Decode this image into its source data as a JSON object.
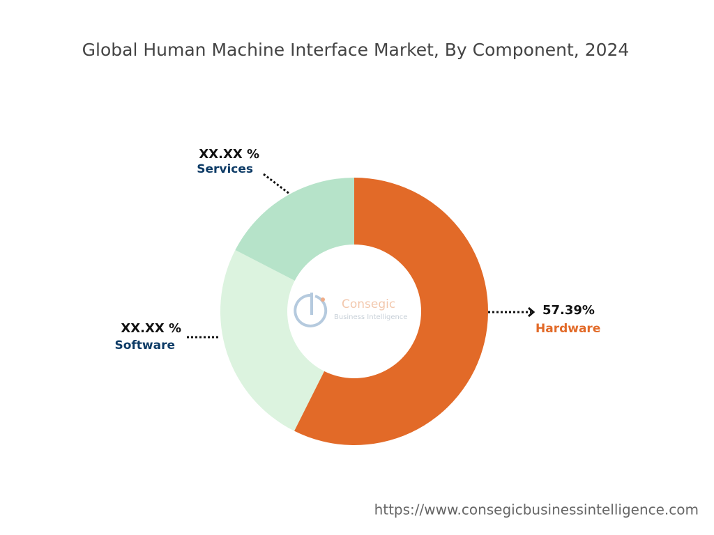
{
  "chart_data": {
    "type": "donut",
    "title": "Global Human Machine Interface Market, By Component, 2024",
    "categories": [
      "Hardware",
      "Software",
      "Services"
    ],
    "values": [
      57.39,
      25.2,
      17.41
    ],
    "value_labels": [
      "57.39%",
      "XX.XX %",
      "XX.XX %"
    ],
    "colors": [
      "#e26a28",
      "#dcf3df",
      "#b6e3c9"
    ],
    "label_colors": [
      "#e26a28",
      "#0d3b66",
      "#0d3b66"
    ]
  },
  "watermark": {
    "name": "Consegic",
    "tagline": "Business Intelligence"
  },
  "footer": {
    "url": "https://www.consegicbusinessintelligence.com"
  }
}
